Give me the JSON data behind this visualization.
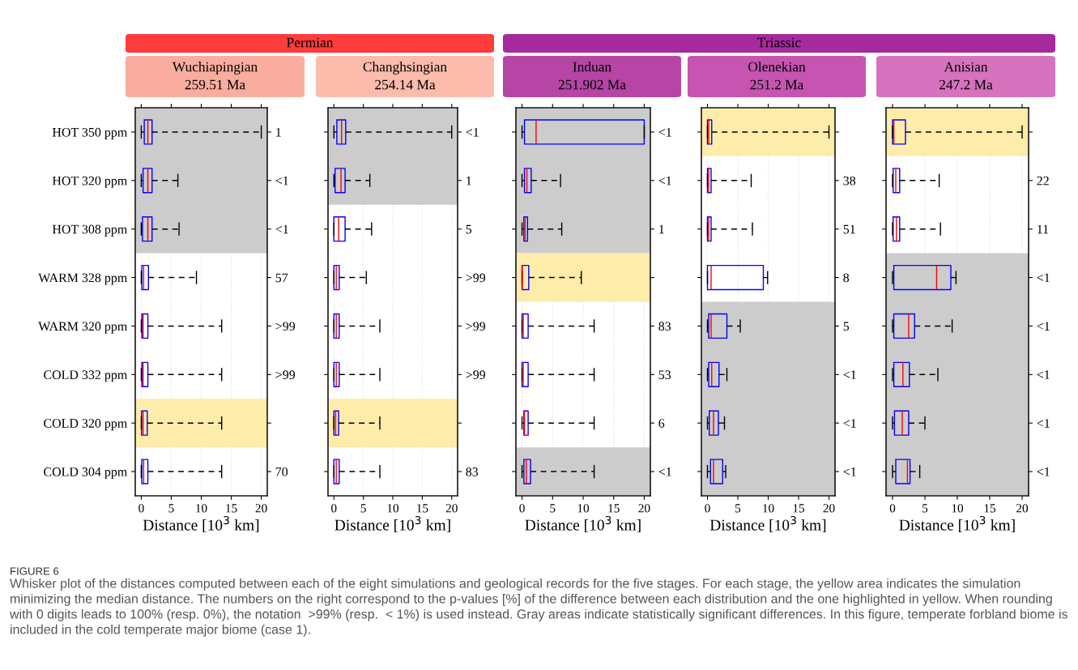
{
  "chart_data": [
    {
      "type": "box",
      "orientation": "horizontal",
      "title": "Wuchiapingian",
      "subtitle": "259.51 Ma",
      "xlabel": "Distance [10$^{3}$ km]",
      "xlim": [
        -1,
        21
      ],
      "xticks": [
        0,
        5,
        10,
        15,
        20
      ],
      "grid": "x",
      "categories": [
        "HOT 350 ppm",
        "HOT 320 ppm",
        "HOT 308 ppm",
        "WARM 328 ppm",
        "WARM 320 ppm",
        "COLD 332 ppm",
        "COLD 320 ppm",
        "COLD 304 ppm"
      ],
      "y2_categories": [
        "1",
        "<1",
        "<1",
        "57",
        ">99",
        ">99",
        null,
        "70"
      ],
      "bands": [
        {
          "axis": "y",
          "from": "HOT 350 ppm",
          "to": "HOT 308 ppm",
          "color": "#cccccc"
        },
        {
          "axis": "y",
          "from": "COLD 320 ppm",
          "to": "COLD 320 ppm",
          "color": "#feecaa"
        }
      ],
      "boxes": [
        {
          "low": 0,
          "q1": 0.5,
          "median": 1.1,
          "q3": 1.8,
          "high": 20
        },
        {
          "low": 0,
          "q1": 0.3,
          "median": 1.1,
          "q3": 1.8,
          "high": 6.1
        },
        {
          "low": 0,
          "q1": 0.2,
          "median": 1.1,
          "q3": 1.8,
          "high": 6.3
        },
        {
          "low": 0,
          "q1": 0.1,
          "median": 0.4,
          "q3": 1.2,
          "high": 9.2
        },
        {
          "low": 0,
          "q1": 0.1,
          "median": 0.3,
          "q3": 1.1,
          "high": 13.4
        },
        {
          "low": 0,
          "q1": 0.1,
          "median": 0.3,
          "q3": 1.1,
          "high": 13.4
        },
        {
          "low": 0,
          "q1": 0.05,
          "median": 0.3,
          "q3": 1.0,
          "high": 13.4
        },
        {
          "low": 0,
          "q1": 0.1,
          "median": 0.4,
          "q3": 1.1,
          "high": 13.4
        }
      ],
      "annotations": [
        "Permian",
        "FIGURE 6",
        "Whisker plot of the distances computed between each of the eight simulations and geological records for the five stages. For each stage, the yellow area indicates the simulation minimizing the median distance. The numbers on the right correspond to the p-values [%] of the difference between each distribution and the one highlighted in yellow. When rounding with 0 digits leads to 100% (resp. 0%), the notation  >99% (resp.  < 1%) is used instead. Gray areas indicate statistically significant differences. In this figure, temperate forbland biome is included in the cold temperate major biome (case 1)."
      ]
    },
    {
      "type": "box",
      "orientation": "horizontal",
      "title": "Changhsingian",
      "subtitle": "254.14 Ma",
      "xlabel": "Distance [10$^{3}$ km]",
      "xlim": [
        -1,
        21
      ],
      "xticks": [
        0,
        5,
        10,
        15,
        20
      ],
      "grid": "x",
      "tick_labels": "x",
      "categories": [
        "HOT 350 ppm",
        "HOT 320 ppm",
        "HOT 308 ppm",
        "WARM 328 ppm",
        "WARM 320 ppm",
        "COLD 332 ppm",
        "COLD 320 ppm",
        "COLD 304 ppm"
      ],
      "y2_categories": [
        "<1",
        "1",
        "5",
        ">99",
        ">99",
        ">99",
        null,
        "83"
      ],
      "bands": [
        {
          "axis": "y",
          "from": "HOT 350 ppm",
          "to": "HOT 320 ppm",
          "color": "#cccccc"
        },
        {
          "axis": "y",
          "from": "COLD 320 ppm",
          "to": "COLD 320 ppm",
          "color": "#feecaa"
        }
      ],
      "boxes": [
        {
          "low": 0,
          "q1": 0.5,
          "median": 1.3,
          "q3": 2.0,
          "high": 20
        },
        {
          "low": 0,
          "q1": 0.2,
          "median": 1.2,
          "q3": 1.9,
          "high": 6.1
        },
        {
          "low": 0,
          "q1": 0,
          "median": 0.8,
          "q3": 1.9,
          "high": 6.4
        },
        {
          "low": 0,
          "q1": 0,
          "median": 0.4,
          "q3": 0.9,
          "high": 5.5
        },
        {
          "low": 0,
          "q1": 0,
          "median": 0.4,
          "q3": 0.9,
          "high": 7.8
        },
        {
          "low": 0,
          "q1": 0,
          "median": 0.4,
          "q3": 0.9,
          "high": 7.8
        },
        {
          "low": 0,
          "q1": 0,
          "median": 0.3,
          "q3": 0.8,
          "high": 7.8
        },
        {
          "low": 0,
          "q1": 0,
          "median": 0.4,
          "q3": 0.9,
          "high": 7.8
        }
      ]
    },
    {
      "type": "box",
      "orientation": "horizontal",
      "title": "Induan",
      "subtitle": "251.902 Ma",
      "xlabel": "Distance [10$^{3}$ km]",
      "xlim": [
        -1,
        21
      ],
      "xticks": [
        0,
        5,
        10,
        15,
        20
      ],
      "grid": "x",
      "tick_labels": "x",
      "categories": [
        "HOT 350 ppm",
        "HOT 320 ppm",
        "HOT 308 ppm",
        "WARM 328 ppm",
        "WARM 320 ppm",
        "COLD 332 ppm",
        "COLD 320 ppm",
        "COLD 304 ppm"
      ],
      "y2_categories": [
        "<1",
        "<1",
        "1",
        null,
        "83",
        "53",
        "6",
        "<1"
      ],
      "bands": [
        {
          "axis": "y",
          "from": "HOT 350 ppm",
          "to": "HOT 308 ppm",
          "color": "#cccccc"
        },
        {
          "axis": "y",
          "from": "WARM 328 ppm",
          "to": "WARM 328 ppm",
          "color": "#feecaa"
        },
        {
          "axis": "y",
          "from": "COLD 304 ppm",
          "to": "COLD 304 ppm",
          "color": "#cccccc"
        }
      ],
      "boxes": [
        {
          "low": 0,
          "q1": 0.4,
          "median": 2.3,
          "q3": 20,
          "high": 20
        },
        {
          "low": 0,
          "q1": 0.4,
          "median": 0.8,
          "q3": 1.5,
          "high": 6.3
        },
        {
          "low": 0,
          "q1": 0.3,
          "median": 0.5,
          "q3": 0.9,
          "high": 6.5
        },
        {
          "low": 0,
          "q1": 0,
          "median": 0.05,
          "q3": 1.1,
          "high": 9.7
        },
        {
          "low": 0,
          "q1": 0,
          "median": 0.2,
          "q3": 1.0,
          "high": 11.8
        },
        {
          "low": 0,
          "q1": 0,
          "median": 0.2,
          "q3": 1.0,
          "high": 11.8
        },
        {
          "low": 0,
          "q1": 0.3,
          "median": 0.4,
          "q3": 1.0,
          "high": 11.8
        },
        {
          "low": 0,
          "q1": 0.3,
          "median": 0.7,
          "q3": 1.4,
          "high": 11.8
        }
      ],
      "annotations": [
        "Triassic"
      ]
    },
    {
      "type": "box",
      "orientation": "horizontal",
      "title": "Olenekian",
      "subtitle": "251.2 Ma",
      "xlabel": "Distance [10$^{3}$ km]",
      "xlim": [
        -1,
        21
      ],
      "xticks": [
        0,
        5,
        10,
        15,
        20
      ],
      "grid": "x",
      "tick_labels": "x",
      "categories": [
        "HOT 350 ppm",
        "HOT 320 ppm",
        "HOT 308 ppm",
        "WARM 328 ppm",
        "WARM 320 ppm",
        "COLD 332 ppm",
        "COLD 320 ppm",
        "COLD 304 ppm"
      ],
      "y2_categories": [
        null,
        "38",
        "51",
        "8",
        "5",
        "<1",
        "<1",
        "<1"
      ],
      "bands": [
        {
          "axis": "y",
          "from": "HOT 350 ppm",
          "to": "HOT 350 ppm",
          "color": "#feecaa"
        },
        {
          "axis": "y",
          "from": "WARM 320 ppm",
          "to": "COLD 304 ppm",
          "color": "#cccccc"
        }
      ],
      "boxes": [
        {
          "low": 0,
          "q1": 0,
          "median": 0.2,
          "q3": 0.7,
          "high": 20
        },
        {
          "low": 0,
          "q1": 0,
          "median": 0.2,
          "q3": 0.6,
          "high": 7.2
        },
        {
          "low": 0,
          "q1": 0,
          "median": 0.2,
          "q3": 0.6,
          "high": 7.4
        },
        {
          "low": 0,
          "q1": 0,
          "median": 0.6,
          "q3": 9.2,
          "high": 9.9
        },
        {
          "low": 0,
          "q1": 0.2,
          "median": 0.6,
          "q3": 3.2,
          "high": 5.4
        },
        {
          "low": 0,
          "q1": 0.2,
          "median": 0.7,
          "q3": 1.9,
          "high": 3.2
        },
        {
          "low": 0,
          "q1": 0.3,
          "median": 1.0,
          "q3": 1.8,
          "high": 2.8
        },
        {
          "low": 0,
          "q1": 0.5,
          "median": 1.0,
          "q3": 2.5,
          "high": 3.0
        }
      ]
    },
    {
      "type": "box",
      "orientation": "horizontal",
      "title": "Anisian",
      "subtitle": "247.2 Ma",
      "xlabel": "Distance [10$^{3}$ km]",
      "xlim": [
        -1,
        21
      ],
      "xticks": [
        0,
        5,
        10,
        15,
        20
      ],
      "grid": "x",
      "tick_labels": "x",
      "categories": [
        "HOT 350 ppm",
        "HOT 320 ppm",
        "HOT 308 ppm",
        "WARM 328 ppm",
        "WARM 320 ppm",
        "COLD 332 ppm",
        "COLD 320 ppm",
        "COLD 304 ppm"
      ],
      "y2_categories": [
        null,
        "22",
        "11",
        "<1",
        "<1",
        "<1",
        "<1",
        "<1"
      ],
      "bands": [
        {
          "axis": "y",
          "from": "HOT 350 ppm",
          "to": "HOT 350 ppm",
          "color": "#feecaa"
        },
        {
          "axis": "y",
          "from": "WARM 328 ppm",
          "to": "COLD 304 ppm",
          "color": "#cccccc"
        }
      ],
      "boxes": [
        {
          "low": 0,
          "q1": 0,
          "median": 0.2,
          "q3": 2.0,
          "high": 20
        },
        {
          "low": 0,
          "q1": 0.1,
          "median": 0.5,
          "q3": 1.1,
          "high": 7.2
        },
        {
          "low": 0,
          "q1": 0.1,
          "median": 0.6,
          "q3": 1.1,
          "high": 7.4
        },
        {
          "low": 0,
          "q1": 0.2,
          "median": 6.8,
          "q3": 9.0,
          "high": 9.8
        },
        {
          "low": 0,
          "q1": 0.2,
          "median": 2.5,
          "q3": 3.4,
          "high": 9.2
        },
        {
          "low": 0,
          "q1": 0.2,
          "median": 1.6,
          "q3": 2.6,
          "high": 7.0
        },
        {
          "low": 0,
          "q1": 0.3,
          "median": 1.5,
          "q3": 2.5,
          "high": 5.0
        },
        {
          "low": 0,
          "q1": 0.5,
          "median": 2.3,
          "q3": 2.7,
          "high": 4.2
        }
      ]
    }
  ]
}
